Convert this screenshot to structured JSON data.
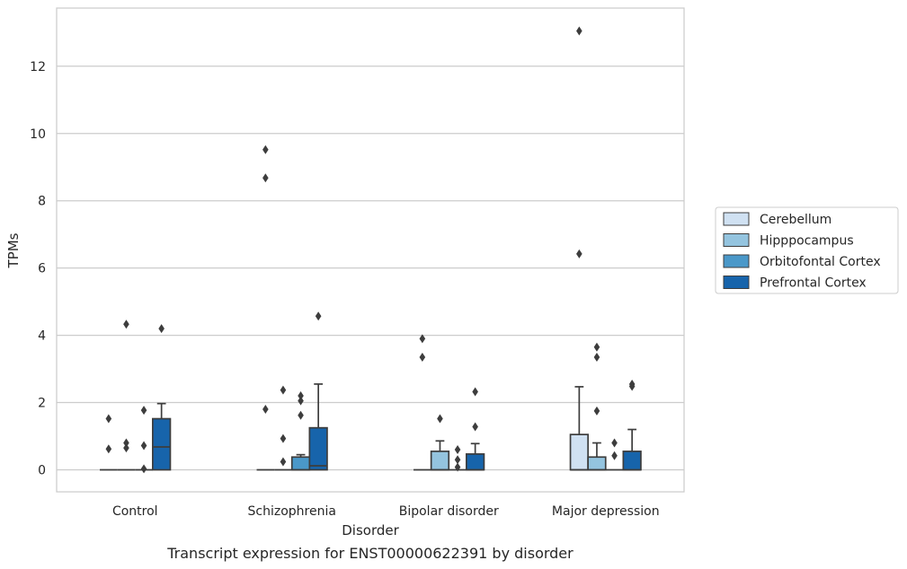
{
  "chart_data": {
    "type": "box",
    "title": "Transcript expression for ENST00000622391 by disorder",
    "xlabel": "Disorder",
    "ylabel": "TPMs",
    "ylim": [
      -0.65,
      13.75
    ],
    "yticks": [
      0,
      2,
      4,
      6,
      8,
      10,
      12
    ],
    "grid": "horizontal",
    "legend_position": "right",
    "categories": [
      "Control",
      "Schizophrenia",
      "Bipolar disorder",
      "Major depression"
    ],
    "series": [
      {
        "name": "Cerebellum",
        "color": "#d0e1f2",
        "boxes": [
          {
            "q1": 0,
            "median": 0,
            "q3": 0,
            "whisker_low": 0,
            "whisker_high": 0,
            "outliers": [
              1.52,
              0.62
            ]
          },
          {
            "q1": 0,
            "median": 0,
            "q3": 0,
            "whisker_low": 0,
            "whisker_high": 0,
            "outliers": [
              9.52,
              8.68,
              1.8
            ]
          },
          {
            "q1": 0,
            "median": 0,
            "q3": 0,
            "whisker_low": 0,
            "whisker_high": 0,
            "outliers": [
              3.9,
              3.35
            ]
          },
          {
            "q1": 0,
            "median": 0,
            "q3": 1.05,
            "whisker_low": 0,
            "whisker_high": 2.47,
            "outliers": [
              13.05,
              6.42
            ]
          }
        ]
      },
      {
        "name": "Hipppocampus",
        "color": "#94c4df",
        "boxes": [
          {
            "q1": 0,
            "median": 0,
            "q3": 0,
            "whisker_low": 0,
            "whisker_high": 0,
            "outliers": [
              4.33,
              0.8,
              0.65
            ]
          },
          {
            "q1": 0,
            "median": 0,
            "q3": 0,
            "whisker_low": 0,
            "whisker_high": 0,
            "outliers": [
              2.37,
              0.93,
              0.24
            ]
          },
          {
            "q1": 0,
            "median": 0,
            "q3": 0.55,
            "whisker_low": 0,
            "whisker_high": 0.86,
            "outliers": [
              1.52
            ]
          },
          {
            "q1": 0,
            "median": 0,
            "q3": 0.38,
            "whisker_low": 0,
            "whisker_high": 0.8,
            "outliers": [
              3.65,
              3.35,
              1.75
            ]
          }
        ]
      },
      {
        "name": "Orbitofontal Cortex",
        "color": "#4a98c9",
        "boxes": [
          {
            "q1": 0,
            "median": 0,
            "q3": 0,
            "whisker_low": 0,
            "whisker_high": 0,
            "outliers": [
              1.77,
              0.72,
              0.03
            ]
          },
          {
            "q1": 0,
            "median": 0,
            "q3": 0.38,
            "whisker_low": 0,
            "whisker_high": 0.45,
            "outliers": [
              2.2,
              2.05,
              1.62
            ]
          },
          {
            "q1": 0,
            "median": 0,
            "q3": 0,
            "whisker_low": 0,
            "whisker_high": 0,
            "outliers": [
              0.6,
              0.3,
              0.08
            ]
          },
          {
            "q1": 0,
            "median": 0,
            "q3": 0,
            "whisker_low": 0,
            "whisker_high": 0,
            "outliers": [
              0.8,
              0.42
            ]
          }
        ]
      },
      {
        "name": "Prefrontal Cortex",
        "color": "#1764ab",
        "boxes": [
          {
            "q1": 0,
            "median": 0.68,
            "q3": 1.52,
            "whisker_low": 0,
            "whisker_high": 1.97,
            "outliers": [
              4.2
            ]
          },
          {
            "q1": 0,
            "median": 0.12,
            "q3": 1.25,
            "whisker_low": 0,
            "whisker_high": 2.55,
            "outliers": [
              4.57
            ]
          },
          {
            "q1": 0,
            "median": 0,
            "q3": 0.47,
            "whisker_low": 0,
            "whisker_high": 0.78,
            "outliers": [
              2.32,
              1.28
            ]
          },
          {
            "q1": 0,
            "median": 0,
            "q3": 0.55,
            "whisker_low": 0,
            "whisker_high": 1.2,
            "outliers": [
              2.55,
              2.48
            ]
          }
        ]
      }
    ]
  }
}
